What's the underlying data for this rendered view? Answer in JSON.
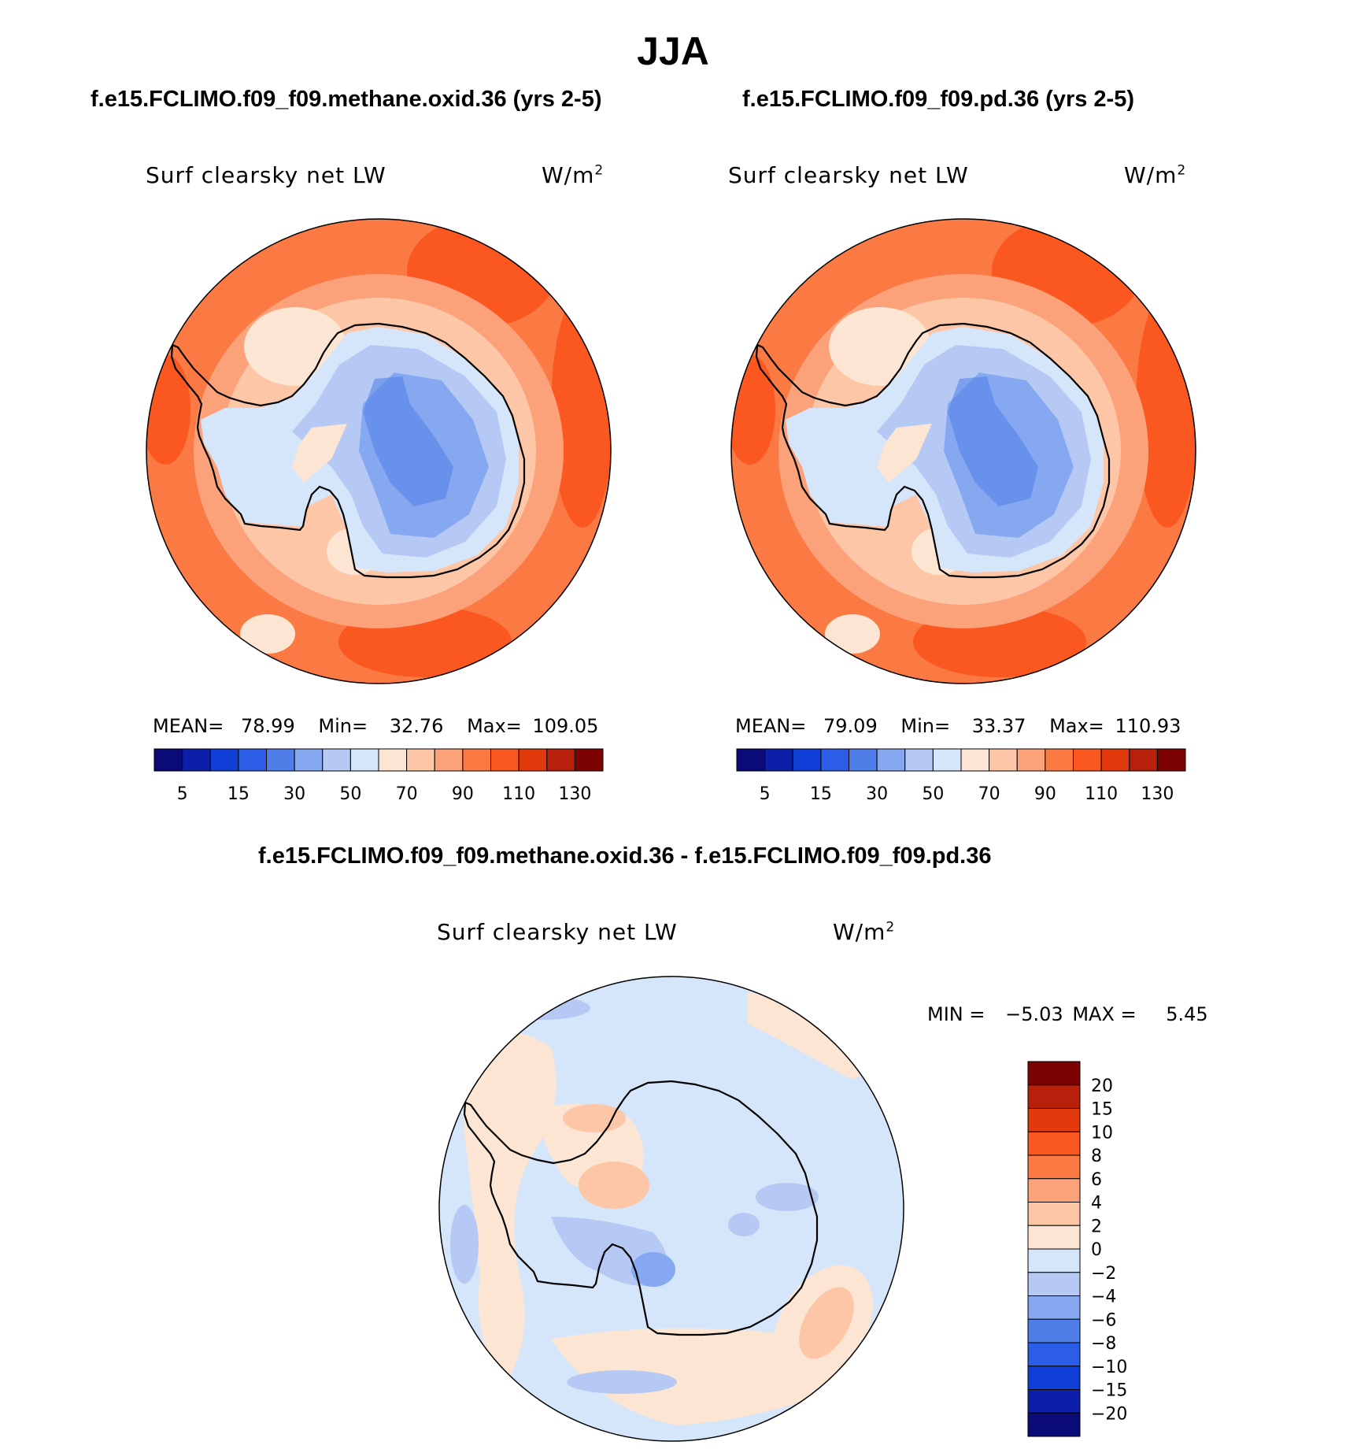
{
  "figure": {
    "season": "JJA",
    "case_a_title": "f.e15.FCLIMO.f09_f09.methane.oxid.36 (yrs 2-5)",
    "case_b_title": "f.e15.FCLIMO.f09_f09.pd.36 (yrs 2-5)",
    "diff_title": "f.e15.FCLIMO.f09_f09.methane.oxid.36 - f.e15.FCLIMO.f09_f09.pd.36"
  },
  "colors": {
    "abs_levels": [
      "#0a0a78",
      "#0b1fa8",
      "#0f3fd6",
      "#2b5de6",
      "#4f7ee8",
      "#86a8f0",
      "#b6c9f4",
      "#d6e6fa",
      "#fde5d3",
      "#fdc6a6",
      "#fba27a",
      "#fb7a44",
      "#fb5720",
      "#e23a0d",
      "#b8200c",
      "#7d0303"
    ],
    "diff_levels": [
      "#0a0a78",
      "#0b1fa8",
      "#0f3fd6",
      "#2b5de6",
      "#4f7ee8",
      "#86a8f0",
      "#b6c9f4",
      "#d6e6fa",
      "#fde5d3",
      "#fdc6a6",
      "#fba27a",
      "#fb7a44",
      "#fb5720",
      "#e23a0d",
      "#b8200c",
      "#7d0303"
    ],
    "coastline": "#000000"
  },
  "chart_data": [
    {
      "type": "heatmap",
      "projection": "south-polar-stereographic",
      "case": "f.e15.FCLIMO.f09_f09.methane.oxid.36 (yrs 2-5)",
      "variable": "Surf clearsky net LW",
      "units": "W/m",
      "units_exp": "2",
      "mean_label": "MEAN=",
      "mean": "78.99",
      "min_label": "Min=",
      "min": "32.76",
      "max_label": "Max=",
      "max": "109.05",
      "colorbar_ticks": [
        "5",
        "15",
        "30",
        "50",
        "70",
        "90",
        "110",
        "130"
      ]
    },
    {
      "type": "heatmap",
      "projection": "south-polar-stereographic",
      "case": "f.e15.FCLIMO.f09_f09.pd.36 (yrs 2-5)",
      "variable": "Surf clearsky net LW",
      "units": "W/m",
      "units_exp": "2",
      "mean_label": "MEAN=",
      "mean": "79.09",
      "min_label": "Min=",
      "min": "33.37",
      "max_label": "Max=",
      "max": "110.93",
      "colorbar_ticks": [
        "5",
        "15",
        "30",
        "50",
        "70",
        "90",
        "110",
        "130"
      ]
    },
    {
      "type": "heatmap",
      "projection": "south-polar-stereographic",
      "case": "f.e15.FCLIMO.f09_f09.methane.oxid.36 - f.e15.FCLIMO.f09_f09.pd.36",
      "variable": "Surf clearsky net LW",
      "units": "W/m",
      "units_exp": "2",
      "min_label": "MIN =",
      "min": "−5.03",
      "max_label": "MAX =",
      "max": "5.45",
      "colorbar_ticks": [
        "20",
        "15",
        "10",
        "8",
        "6",
        "4",
        "2",
        "0",
        "−2",
        "−4",
        "−6",
        "−8",
        "−10",
        "−15",
        "−20"
      ]
    }
  ]
}
